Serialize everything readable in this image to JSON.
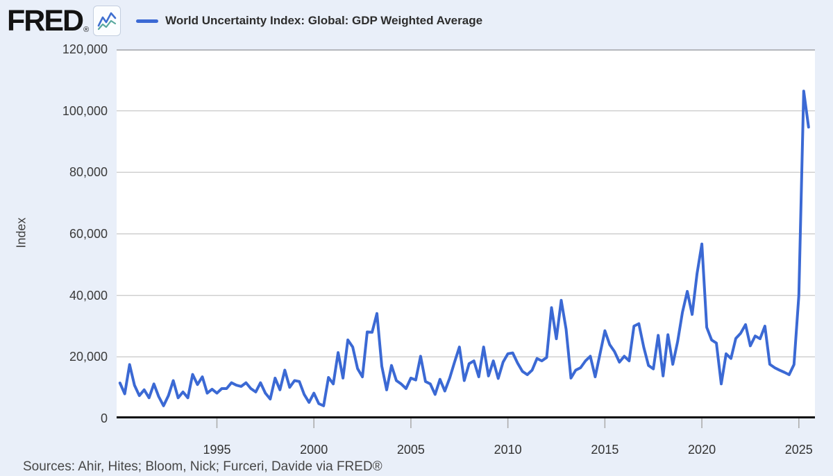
{
  "header": {
    "logo_text": "FRED",
    "registered_mark": "®",
    "legend": {
      "series_label": "World Uncertainty Index: Global: GDP Weighted Average"
    }
  },
  "y_axis": {
    "title": "Index"
  },
  "sources": {
    "prefix": "Sources: Ahir, Hites; Bloom, Nick; Furceri, Davide via ",
    "fred_link": "FRED®"
  },
  "chart_data": {
    "type": "line",
    "title": "World Uncertainty Index: Global: GDP Weighted Average",
    "ylabel": "Index",
    "frequency": "quarterly",
    "x_start": 1990.0,
    "x_step": 0.25,
    "x_range": [
      1989.83,
      2025.83
    ],
    "ylim": [
      0,
      120000
    ],
    "y_ticks": [
      0,
      20000,
      40000,
      60000,
      80000,
      100000,
      120000
    ],
    "x_ticks": [
      1995,
      2000,
      2005,
      2010,
      2015,
      2020,
      2025
    ],
    "line_color": "#3b69d4",
    "grid": true,
    "legend_position": "top-left",
    "values": [
      11500,
      8000,
      17500,
      10800,
      7400,
      9300,
      6700,
      11200,
      7100,
      4100,
      7400,
      12300,
      6700,
      8600,
      6700,
      14300,
      11000,
      13500,
      8200,
      9500,
      8200,
      9700,
      9700,
      11600,
      10800,
      10400,
      11600,
      9700,
      8600,
      11600,
      8200,
      6300,
      13100,
      9300,
      15700,
      10100,
      12300,
      12000,
      7800,
      5200,
      8200,
      4800,
      4100,
      13300,
      11200,
      21400,
      13100,
      25500,
      23200,
      16200,
      13500,
      28100,
      28000,
      34100,
      17000,
      9300,
      17200,
      12300,
      11200,
      9700,
      13100,
      12500,
      20200,
      12000,
      11200,
      7800,
      12700,
      8900,
      13100,
      18300,
      23200,
      12300,
      17800,
      18700,
      13500,
      23200,
      13800,
      18700,
      13000,
      18300,
      21000,
      21300,
      18000,
      15300,
      14200,
      15700,
      19500,
      18700,
      19800,
      36000,
      25900,
      38400,
      29000,
      13100,
      15700,
      16500,
      18700,
      20200,
      13500,
      21000,
      28500,
      24000,
      21700,
      18300,
      20200,
      18700,
      30000,
      30800,
      23200,
      17200,
      16100,
      27000,
      13800,
      27200,
      17600,
      25000,
      34500,
      41300,
      33800,
      47000,
      56700,
      29600,
      25500,
      24500,
      11200,
      21000,
      19500,
      26000,
      27700,
      30500,
      23600,
      26800,
      25900,
      30000,
      17600,
      16500,
      15700,
      15000,
      14200,
      17500,
      40000,
      106400,
      94700
    ]
  }
}
